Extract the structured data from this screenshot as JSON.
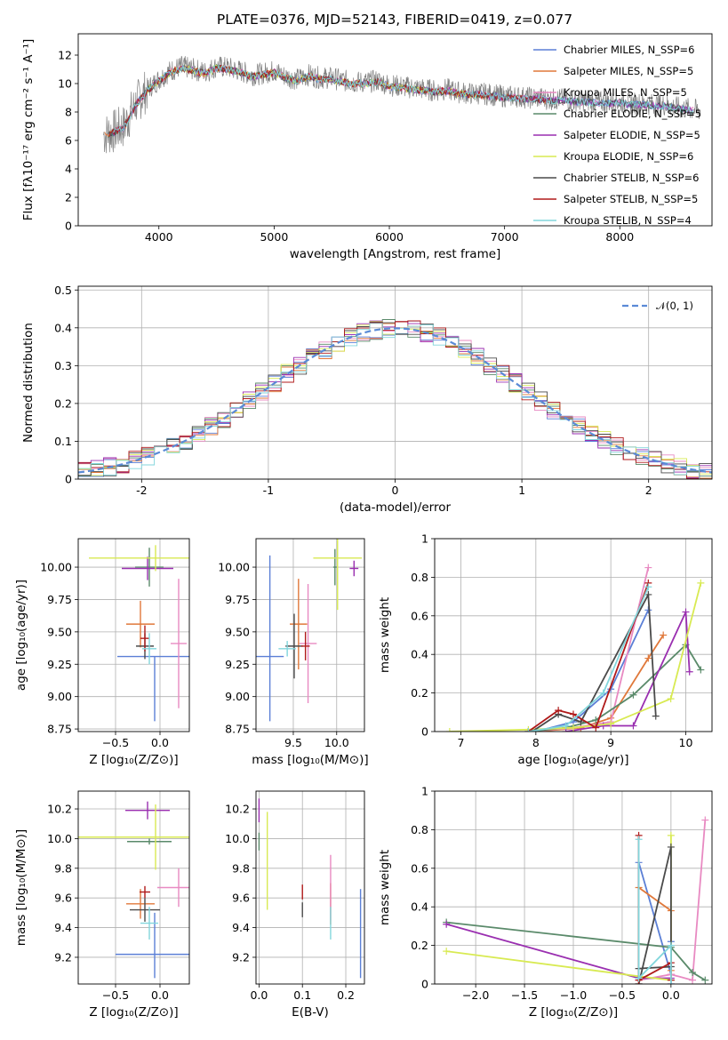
{
  "figure_title": "PLATE=0376, MJD=52143, FIBERID=0419, z=0.077",
  "chart_data": [
    {
      "id": "spectrum",
      "type": "line",
      "title": "PLATE=0376, MJD=52143, FIBERID=0419, z=0.077",
      "xlabel": "wavelength [Angstrom, rest frame]",
      "ylabel": "Flux [fλ10⁻¹⁷ erg cm⁻² s⁻¹ A⁻¹]",
      "xlim": [
        3300,
        8800
      ],
      "ylim": [
        0,
        13.5
      ],
      "xticks": [
        4000,
        5000,
        6000,
        7000,
        8000
      ],
      "yticks": [
        0,
        2,
        4,
        6,
        8,
        10,
        12
      ],
      "grid": false,
      "legend_position": "upper-right",
      "legend": [
        {
          "label": "Chabrier MILES, N_SSP=6",
          "color": "#5b7fd6"
        },
        {
          "label": "Salpeter MILES, N_SSP=5",
          "color": "#e0783a"
        },
        {
          "label": "Kroupa MILES, N_SSP=5",
          "color": "#e88ac2"
        },
        {
          "label": "Chabrier ELODIE, N_SSP=5",
          "color": "#5a8a6a"
        },
        {
          "label": "Salpeter ELODIE, N_SSP=5",
          "color": "#9a2fb0"
        },
        {
          "label": "Kroupa ELODIE, N_SSP=6",
          "color": "#d8ea52"
        },
        {
          "label": "Chabrier STELIB, N_SSP=6",
          "color": "#4a4a4a"
        },
        {
          "label": "Salpeter STELIB, N_SSP=5",
          "color": "#b01a1a"
        },
        {
          "label": "Kroupa STELIB, N_SSP=4",
          "color": "#82d6dc"
        }
      ],
      "data_color": "#808080",
      "data_points": [
        [
          3520,
          6.4
        ],
        [
          3600,
          6.6
        ],
        [
          3700,
          7.0
        ],
        [
          3800,
          8.6
        ],
        [
          3900,
          9.6
        ],
        [
          4000,
          10.3
        ],
        [
          4100,
          10.9
        ],
        [
          4200,
          11.2
        ],
        [
          4300,
          11.0
        ],
        [
          4400,
          10.8
        ],
        [
          4500,
          11.2
        ],
        [
          4600,
          11.1
        ],
        [
          4700,
          10.9
        ],
        [
          4800,
          10.6
        ],
        [
          4900,
          10.7
        ],
        [
          5000,
          10.9
        ],
        [
          5100,
          10.5
        ],
        [
          5200,
          10.3
        ],
        [
          5300,
          10.6
        ],
        [
          5400,
          10.4
        ],
        [
          5500,
          10.4
        ],
        [
          5600,
          10.2
        ],
        [
          5700,
          10.1
        ],
        [
          5800,
          10.1
        ],
        [
          5900,
          10.2
        ],
        [
          6000,
          9.9
        ],
        [
          6100,
          9.8
        ],
        [
          6200,
          9.7
        ],
        [
          6300,
          9.6
        ],
        [
          6400,
          9.5
        ],
        [
          6500,
          9.6
        ],
        [
          6600,
          9.4
        ],
        [
          6700,
          9.3
        ],
        [
          6800,
          9.3
        ],
        [
          6900,
          9.2
        ],
        [
          7000,
          9.1
        ],
        [
          7100,
          9.1
        ],
        [
          7200,
          9.0
        ],
        [
          7300,
          9.0
        ],
        [
          7400,
          8.9
        ],
        [
          7500,
          8.9
        ],
        [
          7600,
          8.8
        ],
        [
          7700,
          8.8
        ],
        [
          7800,
          8.7
        ],
        [
          7900,
          8.7
        ],
        [
          8000,
          8.7
        ],
        [
          8100,
          8.6
        ],
        [
          8200,
          8.6
        ],
        [
          8300,
          8.5
        ],
        [
          8400,
          8.5
        ],
        [
          8500,
          8.3
        ],
        [
          8600,
          8.2
        ],
        [
          8700,
          8.1
        ]
      ]
    },
    {
      "id": "residuals",
      "type": "line",
      "xlabel": "(data-model)/error",
      "ylabel": "Normed distribution",
      "xlim": [
        -2.5,
        2.5
      ],
      "ylim": [
        0,
        0.51
      ],
      "xticks": [
        -2,
        -1,
        0,
        1,
        2
      ],
      "yticks": [
        0.0,
        0.1,
        0.2,
        0.3,
        0.4,
        0.5
      ],
      "grid": true,
      "legend_position": "upper-right",
      "legend": [
        {
          "label": "𝒩(0, 1)",
          "color": "#5a8ad6"
        }
      ],
      "bin_width": 0.1,
      "bin_start": -2.5,
      "histogram_colors": [
        "#5b7fd6",
        "#e0783a",
        "#e88ac2",
        "#5a8a6a",
        "#9a2fb0",
        "#d8ea52",
        "#4a4a4a",
        "#b01a1a",
        "#82d6dc"
      ],
      "histogram_line": "shown as step outlines following the N(0,1) curve"
    },
    {
      "id": "age-vs-Z",
      "type": "scatter",
      "xlabel": "Z [log₁₀(Z/Z⊙)]",
      "ylabel": "age  [log₁₀(age/yr)]",
      "xlim": [
        -0.92,
        0.33
      ],
      "ylim": [
        8.73,
        10.22
      ],
      "xticks": [
        -0.5,
        0.0
      ],
      "xtick_labels": [
        "−0.5",
        "0.0"
      ],
      "yticks": [
        8.75,
        9.0,
        9.25,
        9.5,
        9.75,
        10.0
      ],
      "yticks_labels": [
        "8.75",
        "9.00",
        "9.25",
        "9.50",
        "9.75",
        "10.00"
      ],
      "grid": true,
      "points": [
        {
          "color": "#5b7fd6",
          "x": -0.06,
          "y": 9.31,
          "xerr": 0.42,
          "yerr": [
            0.5,
            0.0
          ]
        },
        {
          "color": "#e0783a",
          "x": -0.22,
          "y": 9.56,
          "xerr": 0.16,
          "yerr": 0.18
        },
        {
          "color": "#e88ac2",
          "x": 0.21,
          "y": 9.41,
          "xerr": 0.09,
          "yerr": 0.5
        },
        {
          "color": "#5a8a6a",
          "x": -0.12,
          "y": 10.0,
          "xerr": 0.16,
          "yerr": 0.15
        },
        {
          "color": "#9a2fb0",
          "x": -0.14,
          "y": 9.99,
          "xerr": 0.29,
          "yerr": 0.09
        },
        {
          "color": "#d8ea52",
          "x": -0.05,
          "y": 10.07,
          "xerr": 0.75,
          "yerr": 0.1
        },
        {
          "color": "#4a4a4a",
          "x": -0.17,
          "y": 9.39,
          "xerr": 0.1,
          "yerr": 0.1
        },
        {
          "color": "#b01a1a",
          "x": -0.17,
          "y": 9.45,
          "xerr": 0.05,
          "yerr": 0.1
        },
        {
          "color": "#82d6dc",
          "x": -0.12,
          "y": 9.37,
          "xerr": 0.08,
          "yerr": 0.12
        }
      ]
    },
    {
      "id": "age-vs-mass",
      "type": "scatter",
      "xlabel": "mass [log₁₀(M/M⊙)]",
      "ylabel": "",
      "xlim": [
        9.07,
        10.32
      ],
      "ylim": [
        8.73,
        10.22
      ],
      "xticks": [
        9.5,
        10.0
      ],
      "xtick_labels": [
        "9.5",
        "10.0"
      ],
      "yticks": [
        8.75,
        9.0,
        9.25,
        9.5,
        9.75,
        10.0
      ],
      "yticks_labels": [
        "8.75",
        "9.00",
        "9.25",
        "9.50",
        "9.75",
        "10.00"
      ],
      "grid": true,
      "points": [
        {
          "color": "#5b7fd6",
          "x": 9.23,
          "y": 9.31,
          "xerr": 0.16,
          "yerr": [
            0.5,
            0.78
          ]
        },
        {
          "color": "#e0783a",
          "x": 9.56,
          "y": 9.56,
          "xerr": 0.1,
          "yerr": 0.35
        },
        {
          "color": "#e88ac2",
          "x": 9.67,
          "y": 9.41,
          "xerr": 0.1,
          "yerr": 0.46
        },
        {
          "color": "#5a8a6a",
          "x": 9.98,
          "y": 10.0,
          "xerr": 0.02,
          "yerr": 0.14
        },
        {
          "color": "#9a2fb0",
          "x": 10.2,
          "y": 9.99,
          "xerr": 0.05,
          "yerr": 0.06
        },
        {
          "color": "#d8ea52",
          "x": 10.01,
          "y": 10.07,
          "xerr": 0.28,
          "yerr": 0.4
        },
        {
          "color": "#4a4a4a",
          "x": 9.51,
          "y": 9.39,
          "xerr": 0.1,
          "yerr": 0.25
        },
        {
          "color": "#b01a1a",
          "x": 9.64,
          "y": 9.39,
          "xerr": 0.05,
          "yerr": 0.11
        },
        {
          "color": "#82d6dc",
          "x": 9.43,
          "y": 9.37,
          "xerr": 0.1,
          "yerr": 0.06
        }
      ]
    },
    {
      "id": "mass-weight-vs-age",
      "type": "line",
      "xlabel": "age  [log₁₀(age/yr)]",
      "ylabel": "mass weight",
      "xlim": [
        6.65,
        10.35
      ],
      "ylim": [
        0,
        1.0
      ],
      "xticks": [
        7,
        8,
        9,
        10
      ],
      "yticks": [
        0.0,
        0.2,
        0.4,
        0.6,
        0.8,
        1.0
      ],
      "grid": true,
      "series": [
        {
          "color": "#5b7fd6",
          "x": [
            8.0,
            8.5,
            9.0,
            9.5
          ],
          "y": [
            0.0,
            0.05,
            0.22,
            0.63
          ]
        },
        {
          "color": "#e0783a",
          "x": [
            8.0,
            8.6,
            9.0,
            9.5,
            9.7
          ],
          "y": [
            0.0,
            0.02,
            0.07,
            0.38,
            0.5
          ]
        },
        {
          "color": "#e88ac2",
          "x": [
            7.9,
            8.5,
            9.0,
            9.5
          ],
          "y": [
            0.0,
            0.02,
            0.05,
            0.85
          ]
        },
        {
          "color": "#5a8a6a",
          "x": [
            7.9,
            8.4,
            8.8,
            9.3,
            10.0,
            10.2
          ],
          "y": [
            0.0,
            0.02,
            0.06,
            0.19,
            0.45,
            0.32
          ]
        },
        {
          "color": "#9a2fb0",
          "x": [
            8.4,
            8.9,
            9.3,
            10.0,
            10.05
          ],
          "y": [
            0.0,
            0.03,
            0.03,
            0.62,
            0.31
          ]
        },
        {
          "color": "#d8ea52",
          "x": [
            6.85,
            7.9,
            8.5,
            9.0,
            9.8,
            10.2
          ],
          "y": [
            0.0,
            0.01,
            0.02,
            0.04,
            0.17,
            0.77
          ]
        },
        {
          "color": "#4a4a4a",
          "x": [
            7.95,
            8.3,
            8.6,
            9.5,
            9.6
          ],
          "y": [
            0.0,
            0.09,
            0.05,
            0.71,
            0.08
          ]
        },
        {
          "color": "#b01a1a",
          "x": [
            7.9,
            8.3,
            8.5,
            8.8,
            9.5
          ],
          "y": [
            0.0,
            0.11,
            0.09,
            0.02,
            0.77
          ]
        },
        {
          "color": "#82d6dc",
          "x": [
            7.9,
            8.4,
            8.9,
            9.5
          ],
          "y": [
            0.0,
            0.03,
            0.2,
            0.75
          ]
        }
      ]
    },
    {
      "id": "mass-vs-Z",
      "type": "scatter",
      "xlabel": "Z [log₁₀(Z/Z⊙)]",
      "ylabel": "mass [log₁₀(M/M⊙)]",
      "xlim": [
        -0.92,
        0.33
      ],
      "ylim": [
        9.02,
        10.32
      ],
      "xticks": [
        -0.5,
        0.0
      ],
      "xtick_labels": [
        "−0.5",
        "0.0"
      ],
      "yticks": [
        9.2,
        9.4,
        9.6,
        9.8,
        10.0,
        10.2
      ],
      "yticks_labels": [
        "9.2",
        "9.4",
        "9.6",
        "9.8",
        "10.0",
        "10.2"
      ],
      "grid": true,
      "points": [
        {
          "color": "#5b7fd6",
          "x": -0.06,
          "y": 9.22,
          "xerr": 0.44,
          "yerr": [
            0.16,
            0.28
          ]
        },
        {
          "color": "#e0783a",
          "x": -0.22,
          "y": 9.56,
          "xerr": 0.16,
          "yerr": 0.1
        },
        {
          "color": "#e88ac2",
          "x": 0.21,
          "y": 9.67,
          "xerr": 0.24,
          "yerr": 0.13
        },
        {
          "color": "#5a8a6a",
          "x": -0.12,
          "y": 9.98,
          "xerr": 0.25,
          "yerr": 0.02
        },
        {
          "color": "#9a2fb0",
          "x": -0.14,
          "y": 10.19,
          "xerr": 0.25,
          "yerr": 0.06
        },
        {
          "color": "#d8ea52",
          "x": -0.05,
          "y": 10.01,
          "xerr": 0.88,
          "yerr": 0.22
        },
        {
          "color": "#4a4a4a",
          "x": -0.17,
          "y": 9.52,
          "xerr": 0.17,
          "yerr": 0.08
        },
        {
          "color": "#b01a1a",
          "x": -0.17,
          "y": 9.64,
          "xerr": 0.06,
          "yerr": 0.04
        },
        {
          "color": "#82d6dc",
          "x": -0.12,
          "y": 9.43,
          "xerr": 0.1,
          "yerr": 0.11
        }
      ]
    },
    {
      "id": "mass-vs-EBV",
      "type": "scatter",
      "xlabel": "E(B-V)",
      "ylabel": "",
      "xlim": [
        -0.007,
        0.243
      ],
      "ylim": [
        9.02,
        10.32
      ],
      "xticks": [
        0.0,
        0.1,
        0.2
      ],
      "xtick_labels": [
        "0.0",
        "0.1",
        "0.2"
      ],
      "yticks": [
        9.2,
        9.4,
        9.6,
        9.8,
        10.0,
        10.2
      ],
      "yticks_labels": [
        "9.2",
        "9.4",
        "9.6",
        "9.8",
        "10.0",
        "10.2"
      ],
      "grid": true,
      "points": [
        {
          "color": "#5b7fd6",
          "x": 0.234,
          "y": 9.22,
          "xerr": 0.0,
          "yerr": [
            0.16,
            0.44
          ]
        },
        {
          "color": "#e0783a",
          "x": 0.165,
          "y": 9.56,
          "xerr": 0.0,
          "yerr": 0.14
        },
        {
          "color": "#e88ac2",
          "x": 0.165,
          "y": 9.67,
          "xerr": 0.0,
          "yerr": 0.22
        },
        {
          "color": "#5a8a6a",
          "x": 0.0,
          "y": 9.98,
          "xerr": 0.0,
          "yerr": 0.06
        },
        {
          "color": "#9a2fb0",
          "x": 0.0,
          "y": 10.19,
          "xerr": 0.0,
          "yerr": 0.08
        },
        {
          "color": "#d8ea52",
          "x": 0.019,
          "y": 9.85,
          "xerr": 0.0,
          "yerr": 0.33
        },
        {
          "color": "#4a4a4a",
          "x": 0.1,
          "y": 9.52,
          "xerr": 0.0,
          "yerr": 0.05
        },
        {
          "color": "#b01a1a",
          "x": 0.1,
          "y": 9.64,
          "xerr": 0.0,
          "yerr": 0.05
        },
        {
          "color": "#82d6dc",
          "x": 0.165,
          "y": 9.43,
          "xerr": 0.0,
          "yerr": 0.11
        }
      ]
    },
    {
      "id": "mass-weight-vs-Z",
      "type": "line",
      "xlabel": "Z [log₁₀(Z/Z⊙)]",
      "ylabel": "mass weight",
      "xlim": [
        -2.42,
        0.42
      ],
      "ylim": [
        0,
        1.0
      ],
      "xticks": [
        -2.0,
        -1.5,
        -1.0,
        -0.5,
        0.0
      ],
      "xtick_labels": [
        "−2.0",
        "−1.5",
        "−1.0",
        "−0.5",
        "0.0"
      ],
      "yticks": [
        0.0,
        0.2,
        0.4,
        0.6,
        0.8,
        1.0
      ],
      "grid": true,
      "series": [
        {
          "color": "#5b7fd6",
          "x": [
            -0.33,
            -0.33,
            0.0,
            0.0
          ],
          "y": [
            0.0,
            0.63,
            0.05,
            0.22
          ]
        },
        {
          "color": "#e0783a",
          "x": [
            -0.33,
            -0.33,
            0.0,
            0.0
          ],
          "y": [
            0.0,
            0.5,
            0.38,
            0.07
          ]
        },
        {
          "color": "#e88ac2",
          "x": [
            -0.33,
            0.0,
            0.22,
            0.35
          ],
          "y": [
            0.02,
            0.05,
            0.02,
            0.85
          ]
        },
        {
          "color": "#5a8a6a",
          "x": [
            -2.3,
            0.0,
            0.22,
            0.35
          ],
          "y": [
            0.32,
            0.19,
            0.06,
            0.02
          ]
        },
        {
          "color": "#9a2fb0",
          "x": [
            -2.3,
            -0.33,
            0.0,
            0.0
          ],
          "y": [
            0.31,
            0.03,
            0.03,
            0.0
          ]
        },
        {
          "color": "#d8ea52",
          "x": [
            -2.3,
            -0.33,
            0.0,
            0.0
          ],
          "y": [
            0.17,
            0.04,
            0.02,
            0.77
          ]
        },
        {
          "color": "#4a4a4a",
          "x": [
            -0.33,
            0.0,
            0.0,
            -0.33
          ],
          "y": [
            0.08,
            0.09,
            0.71,
            0.0
          ]
        },
        {
          "color": "#b01a1a",
          "x": [
            -0.33,
            -0.33,
            0.0,
            0.0
          ],
          "y": [
            0.77,
            0.02,
            0.11,
            0.02
          ]
        },
        {
          "color": "#82d6dc",
          "x": [
            -0.33,
            -0.33,
            0.0,
            0.0
          ],
          "y": [
            0.75,
            0.03,
            0.2,
            0.0
          ]
        }
      ]
    }
  ]
}
